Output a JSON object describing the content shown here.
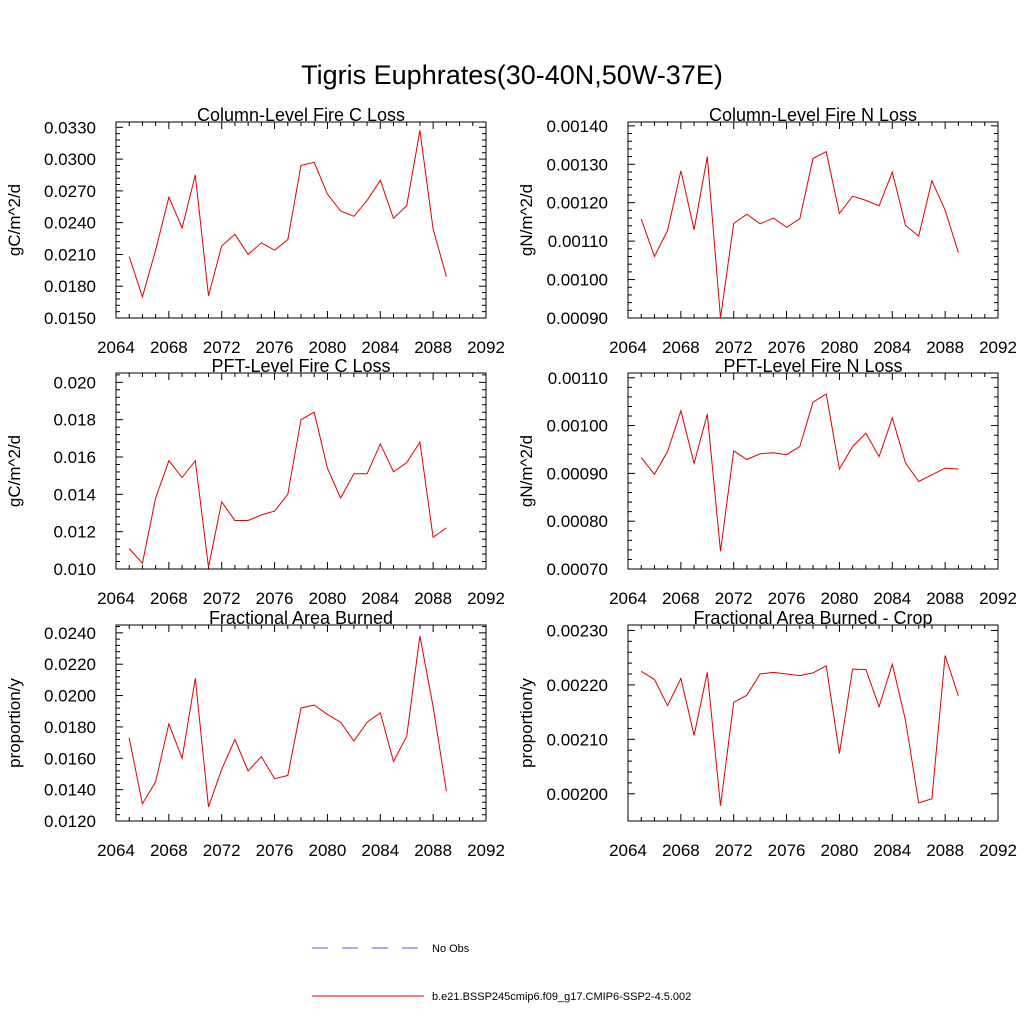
{
  "title": "Tigris Euphrates(30-40N,50W-37E)",
  "legend": {
    "placement": "bottom-center",
    "entries": [
      {
        "label": "No Obs",
        "color": "#5b5bd6",
        "dash": true
      },
      {
        "label": "b.e21.BSSP245cmip6.f09_g17.CMIP6-SSP2-4.5.002",
        "color": "#e00000",
        "dash": false
      }
    ]
  },
  "chart_data": [
    {
      "type": "line",
      "title": "Column-Level Fire C Loss",
      "ylabel": "gC/m^2/d",
      "xlim": [
        2064,
        2092
      ],
      "ylim": [
        0.015,
        0.0335
      ],
      "xticks": [
        "2064",
        "2068",
        "2072",
        "2076",
        "2080",
        "2084",
        "2088",
        "2092"
      ],
      "yticks": [
        "0.0150",
        "0.0180",
        "0.0210",
        "0.0240",
        "0.0270",
        "0.0300",
        "0.0330"
      ],
      "x": [
        2065,
        2066,
        2067,
        2068,
        2069,
        2070,
        2071,
        2072,
        2073,
        2074,
        2075,
        2076,
        2077,
        2078,
        2079,
        2080,
        2081,
        2082,
        2083,
        2084,
        2085,
        2086,
        2087,
        2088,
        2089
      ],
      "series": [
        {
          "color": "#e00000",
          "values": [
            0.0208,
            0.017,
            0.0214,
            0.0264,
            0.0235,
            0.0285,
            0.0171,
            0.0218,
            0.0229,
            0.021,
            0.0221,
            0.0214,
            0.0224,
            0.0294,
            0.0297,
            0.0267,
            0.0251,
            0.0246,
            0.0261,
            0.028,
            0.0244,
            0.0256,
            0.0327,
            0.0234,
            0.0189
          ]
        }
      ]
    },
    {
      "type": "line",
      "title": "Column-Level Fire N Loss",
      "ylabel": "gN/m^2/d",
      "xlim": [
        2064,
        2092
      ],
      "ylim": [
        0.0009,
        0.00141
      ],
      "xticks": [
        "2064",
        "2068",
        "2072",
        "2076",
        "2080",
        "2084",
        "2088",
        "2092"
      ],
      "yticks": [
        "0.00090",
        "0.00100",
        "0.00110",
        "0.00120",
        "0.00130",
        "0.00140"
      ],
      "x": [
        2065,
        2066,
        2067,
        2068,
        2069,
        2070,
        2071,
        2072,
        2073,
        2074,
        2075,
        2076,
        2077,
        2078,
        2079,
        2080,
        2081,
        2082,
        2083,
        2084,
        2085,
        2086,
        2087,
        2088,
        2089
      ],
      "series": [
        {
          "color": "#e00000",
          "values": [
            0.001158,
            0.00106,
            0.001128,
            0.001283,
            0.00113,
            0.00132,
            0.0009,
            0.001146,
            0.00117,
            0.001145,
            0.00116,
            0.001136,
            0.001158,
            0.001315,
            0.001333,
            0.001172,
            0.001217,
            0.001206,
            0.001192,
            0.00128,
            0.001141,
            0.001113,
            0.001257,
            0.001181,
            0.00107
          ]
        }
      ]
    },
    {
      "type": "line",
      "title": "PFT-Level Fire C Loss",
      "ylabel": "gC/m^2/d",
      "xlim": [
        2064,
        2092
      ],
      "ylim": [
        0.01,
        0.0205
      ],
      "xticks": [
        "2064",
        "2068",
        "2072",
        "2076",
        "2080",
        "2084",
        "2088",
        "2092"
      ],
      "yticks": [
        "0.010",
        "0.012",
        "0.014",
        "0.016",
        "0.018",
        "0.020"
      ],
      "x": [
        2065,
        2066,
        2067,
        2068,
        2069,
        2070,
        2071,
        2072,
        2073,
        2074,
        2075,
        2076,
        2077,
        2078,
        2079,
        2080,
        2081,
        2082,
        2083,
        2084,
        2085,
        2086,
        2087,
        2088,
        2089
      ],
      "series": [
        {
          "color": "#e00000",
          "values": [
            0.0111,
            0.0103,
            0.0138,
            0.0158,
            0.0149,
            0.0158,
            0.0101,
            0.0136,
            0.0126,
            0.0126,
            0.0129,
            0.0131,
            0.014,
            0.018,
            0.0184,
            0.0154,
            0.0138,
            0.0151,
            0.0151,
            0.0167,
            0.0152,
            0.0157,
            0.0168,
            0.0117,
            0.0122
          ]
        }
      ]
    },
    {
      "type": "line",
      "title": "PFT-Level Fire N Loss",
      "ylabel": "gN/m^2/d",
      "xlim": [
        2064,
        2092
      ],
      "ylim": [
        0.0007,
        0.00111
      ],
      "xticks": [
        "2064",
        "2068",
        "2072",
        "2076",
        "2080",
        "2084",
        "2088",
        "2092"
      ],
      "yticks": [
        "0.00070",
        "0.00080",
        "0.00090",
        "0.00100",
        "0.00110"
      ],
      "x": [
        2065,
        2066,
        2067,
        2068,
        2069,
        2070,
        2071,
        2072,
        2073,
        2074,
        2075,
        2076,
        2077,
        2078,
        2079,
        2080,
        2081,
        2082,
        2083,
        2084,
        2085,
        2086,
        2087,
        2088,
        2089
      ],
      "series": [
        {
          "color": "#e00000",
          "values": [
            0.000933,
            0.000898,
            0.000946,
            0.001031,
            0.000921,
            0.001024,
            0.000737,
            0.000947,
            0.000929,
            0.000941,
            0.000943,
            0.000939,
            0.000956,
            0.001049,
            0.001066,
            0.000909,
            0.000956,
            0.000984,
            0.000935,
            0.001016,
            0.000922,
            0.000883,
            0.000897,
            0.000911,
            0.000909
          ]
        }
      ]
    },
    {
      "type": "line",
      "title": "Fractional Area Burned",
      "ylabel": "proportion/y",
      "xlim": [
        2064,
        2092
      ],
      "ylim": [
        0.012,
        0.0245
      ],
      "xticks": [
        "2064",
        "2068",
        "2072",
        "2076",
        "2080",
        "2084",
        "2088",
        "2092"
      ],
      "yticks": [
        "0.0120",
        "0.0140",
        "0.0160",
        "0.0180",
        "0.0200",
        "0.0220",
        "0.0240"
      ],
      "x": [
        2065,
        2066,
        2067,
        2068,
        2069,
        2070,
        2071,
        2072,
        2073,
        2074,
        2075,
        2076,
        2077,
        2078,
        2079,
        2080,
        2081,
        2082,
        2083,
        2084,
        2085,
        2086,
        2087,
        2088,
        2089
      ],
      "series": [
        {
          "color": "#e00000",
          "values": [
            0.0173,
            0.0131,
            0.0145,
            0.0182,
            0.016,
            0.0211,
            0.0129,
            0.0153,
            0.0172,
            0.0152,
            0.0161,
            0.0147,
            0.0149,
            0.0192,
            0.0194,
            0.0188,
            0.0183,
            0.0171,
            0.0183,
            0.0189,
            0.0158,
            0.0174,
            0.0238,
            0.0193,
            0.0139
          ]
        }
      ]
    },
    {
      "type": "line",
      "title": "Fractional Area Burned - Crop",
      "ylabel": "proportion/y",
      "xlim": [
        2064,
        2092
      ],
      "ylim": [
        0.00195,
        0.00231
      ],
      "xticks": [
        "2064",
        "2068",
        "2072",
        "2076",
        "2080",
        "2084",
        "2088",
        "2092"
      ],
      "yticks": [
        "0.00200",
        "0.00210",
        "0.00220",
        "0.00230"
      ],
      "x": [
        2065,
        2066,
        2067,
        2068,
        2069,
        2070,
        2071,
        2072,
        2073,
        2074,
        2075,
        2076,
        2077,
        2078,
        2079,
        2080,
        2081,
        2082,
        2083,
        2084,
        2085,
        2086,
        2087,
        2088,
        2089
      ],
      "series": [
        {
          "color": "#e00000",
          "values": [
            0.002225,
            0.00221,
            0.002162,
            0.002212,
            0.002107,
            0.002223,
            0.001978,
            0.002168,
            0.002181,
            0.00222,
            0.002223,
            0.00222,
            0.002217,
            0.002222,
            0.002235,
            0.002074,
            0.002229,
            0.002228,
            0.00216,
            0.002238,
            0.002135,
            0.001983,
            0.001991,
            0.002254,
            0.00218
          ]
        }
      ]
    }
  ]
}
